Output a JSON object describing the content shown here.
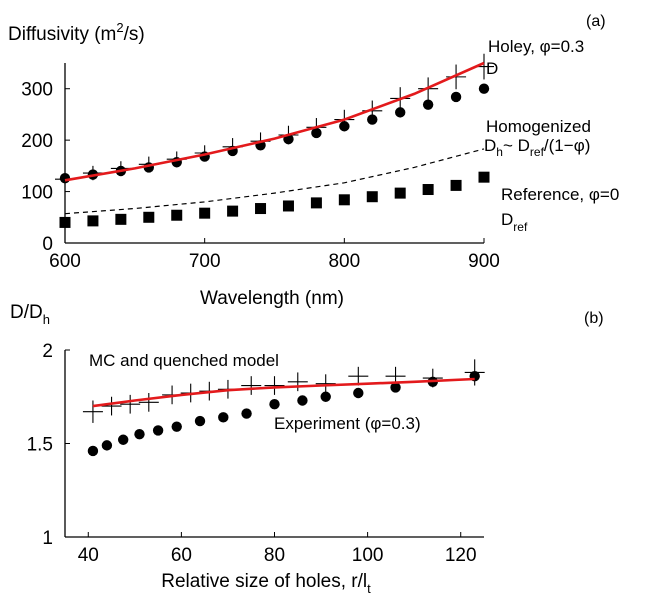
{
  "chart_data": [
    {
      "panel_label": "(a)",
      "type": "line",
      "ylabel": {
        "base": "Diffusivity (m",
        "sup": "2",
        "tail": "/s)"
      },
      "xlabel": "Wavelength (nm)",
      "xlim": [
        600,
        900
      ],
      "ylim": [
        0,
        350
      ],
      "x_ticks": [
        600,
        700,
        800,
        900
      ],
      "y_ticks": [
        0,
        100,
        200,
        300
      ],
      "grid": false,
      "series": [
        {
          "role": "experiment-circles",
          "marker": "circle",
          "x": [
            600,
            620,
            640,
            660,
            680,
            700,
            720,
            740,
            760,
            780,
            800,
            820,
            840,
            860,
            880,
            900
          ],
          "y": [
            126,
            133,
            140,
            147,
            157,
            168,
            179,
            190,
            202,
            214,
            227,
            240,
            254,
            269,
            284,
            300
          ]
        },
        {
          "role": "mc-plus",
          "marker": "plus",
          "x": [
            600,
            620,
            640,
            660,
            680,
            700,
            720,
            740,
            760,
            780,
            800,
            820,
            840,
            860,
            880,
            900
          ],
          "y": [
            124,
            136,
            145,
            153,
            163,
            175,
            187,
            198,
            210,
            225,
            240,
            257,
            281,
            300,
            323,
            343
          ],
          "err": [
            10,
            14,
            14,
            15,
            15,
            15,
            17,
            17,
            18,
            18,
            19,
            20,
            22,
            22,
            24,
            25
          ]
        },
        {
          "role": "holey-fit-red",
          "line": "solid",
          "color": "#e31a1c",
          "x": [
            600,
            650,
            700,
            750,
            800,
            850,
            900
          ],
          "y": [
            122,
            145,
            172,
            203,
            240,
            290,
            350
          ]
        },
        {
          "role": "homogenized-dashed",
          "line": "dashed",
          "color": "#000000",
          "x": [
            600,
            650,
            700,
            750,
            800,
            850,
            900
          ],
          "y": [
            57,
            67,
            80,
            97,
            117,
            147,
            183
          ]
        },
        {
          "role": "reference-squares",
          "marker": "square",
          "x": [
            600,
            620,
            640,
            660,
            680,
            700,
            720,
            740,
            760,
            780,
            800,
            820,
            840,
            860,
            880,
            900
          ],
          "y": [
            40,
            43,
            46,
            50,
            54,
            58,
            62,
            67,
            72,
            78,
            84,
            90,
            97,
            104,
            112,
            128
          ]
        }
      ],
      "annotations": {
        "holey_line1": "Holey, φ=0.3",
        "holey_line2": "D",
        "homog_line1": "Homogenized",
        "homog_dh": "D",
        "homog_dh_sub": "h",
        "homog_tilde": "~ D",
        "homog_ref_sub": "ref",
        "homog_tail": "/(1−φ)",
        "ref_line1": "Reference, φ=0",
        "ref_d": "D",
        "ref_sub": "ref"
      }
    },
    {
      "panel_label": "(b)",
      "type": "line",
      "ylabel": {
        "base": "D/D",
        "sub": "h"
      },
      "xlabel": {
        "base": "Relative size of holes, r/l",
        "sub": "t"
      },
      "xlim": [
        35,
        125
      ],
      "ylim": [
        1,
        2
      ],
      "x_ticks": [
        40,
        60,
        80,
        100,
        120
      ],
      "y_ticks": [
        1,
        1.5,
        2
      ],
      "grid": false,
      "series": [
        {
          "role": "experiment-circles",
          "marker": "circle",
          "x": [
            41,
            44,
            47.5,
            51,
            55,
            59,
            64,
            69,
            74,
            80,
            86,
            91,
            98,
            106,
            114,
            123
          ],
          "y": [
            1.46,
            1.49,
            1.52,
            1.55,
            1.57,
            1.59,
            1.62,
            1.64,
            1.66,
            1.71,
            1.73,
            1.75,
            1.77,
            1.8,
            1.83,
            1.86
          ]
        },
        {
          "role": "mc-plus",
          "marker": "plus",
          "x": [
            41,
            45,
            49,
            53,
            58,
            62,
            66,
            70,
            75,
            80,
            85,
            91,
            98,
            106,
            114,
            123
          ],
          "y": [
            1.67,
            1.7,
            1.71,
            1.72,
            1.76,
            1.77,
            1.78,
            1.79,
            1.81,
            1.81,
            1.83,
            1.82,
            1.86,
            1.86,
            1.85,
            1.88
          ],
          "err": [
            0.06,
            0.05,
            0.05,
            0.05,
            0.05,
            0.05,
            0.05,
            0.05,
            0.05,
            0.05,
            0.05,
            0.05,
            0.05,
            0.05,
            0.05,
            0.07
          ]
        },
        {
          "role": "quenched-model-red",
          "line": "solid",
          "color": "#e31a1c",
          "x": [
            41,
            50,
            60,
            70,
            80,
            90,
            100,
            110,
            123
          ],
          "y": [
            1.7,
            1.73,
            1.76,
            1.785,
            1.8,
            1.81,
            1.82,
            1.83,
            1.845
          ]
        }
      ],
      "annotations": {
        "mc_label": "MC and quenched model",
        "exp_label": "Experiment (φ=0.3)"
      }
    }
  ]
}
